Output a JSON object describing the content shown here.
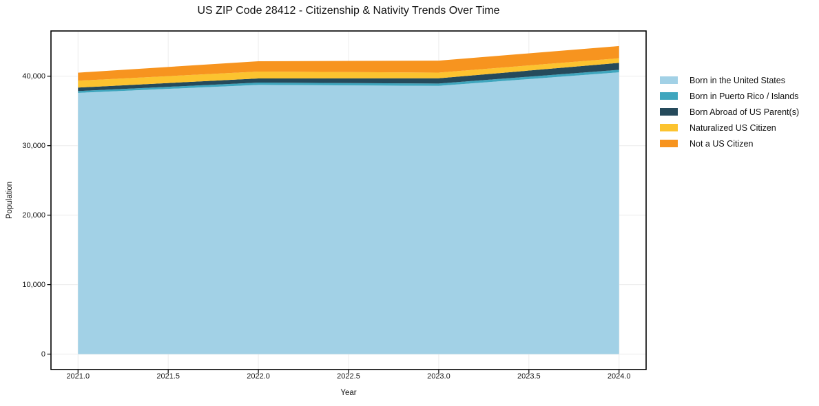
{
  "chart_data": {
    "type": "area",
    "stacked": true,
    "title": "US ZIP Code 28412 - Citizenship & Nativity Trends Over Time",
    "xlabel": "Year",
    "ylabel": "Population",
    "x": [
      2021,
      2022,
      2023,
      2024
    ],
    "series": [
      {
        "name": "Born in the United States",
        "color": "#a2d1e6",
        "values": [
          37600,
          38750,
          38610,
          40560
        ]
      },
      {
        "name": "Born in Puerto Rico / Islands",
        "color": "#3fa6be",
        "values": [
          260,
          330,
          330,
          360
        ]
      },
      {
        "name": "Born Abroad of US Parent(s)",
        "color": "#254a5b",
        "values": [
          500,
          600,
          760,
          1000
        ]
      },
      {
        "name": "Naturalized US Citizen",
        "color": "#fcc32f",
        "values": [
          990,
          990,
          820,
          660
        ]
      },
      {
        "name": "Not a US Citizen",
        "color": "#f7941f",
        "values": [
          1160,
          1480,
          1720,
          1760
        ]
      }
    ],
    "x_ticks": [
      2021.0,
      2021.5,
      2022.0,
      2022.5,
      2023.0,
      2023.5,
      2024.0
    ],
    "x_tick_labels": [
      "2021.0",
      "2021.5",
      "2022.0",
      "2022.5",
      "2023.0",
      "2023.5",
      "2024.0"
    ],
    "y_ticks": [
      0,
      10000,
      20000,
      30000,
      40000
    ],
    "y_tick_labels": [
      "0",
      "10,000",
      "20,000",
      "30,000",
      "40,000"
    ],
    "xlim": [
      2020.85,
      2024.15
    ],
    "ylim": [
      -2220,
      46510
    ],
    "grid": true,
    "legend_position": "right-outside",
    "colors": {
      "frame": "#000000",
      "gridline": "#ececec",
      "background": "#ffffff"
    }
  }
}
